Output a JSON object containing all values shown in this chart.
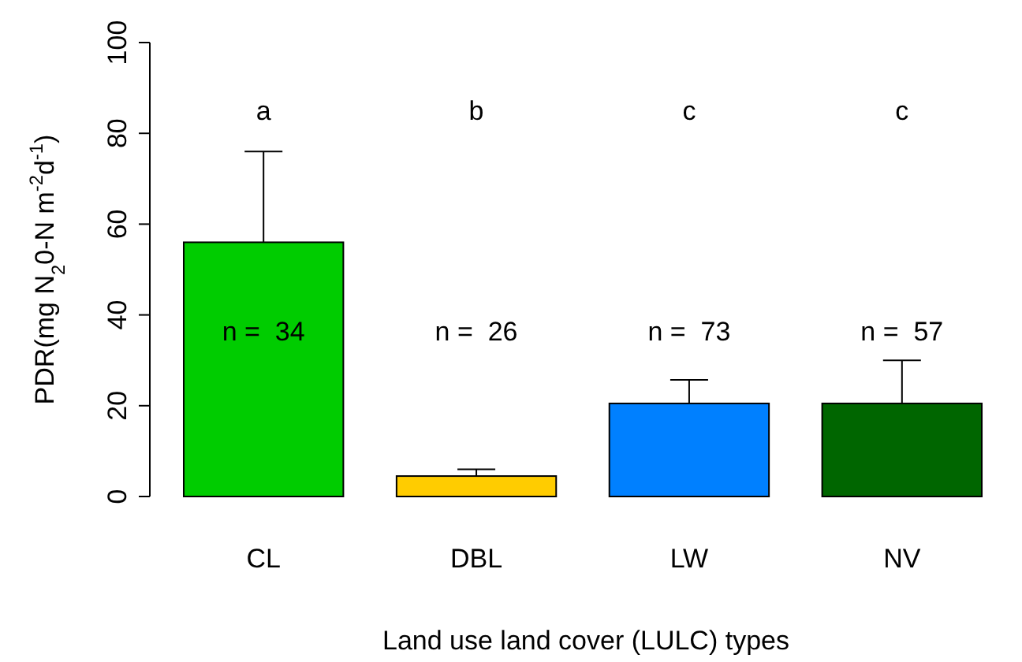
{
  "chart_data": {
    "type": "bar",
    "xlabel": "Land use land cover (LULC) types",
    "ylabel": "PDR(mg N$_{2}$0-N m$^{-2}$d$^{-1}$)",
    "categories": [
      "CL",
      "DBL",
      "LW",
      "NV"
    ],
    "values": [
      56,
      4.5,
      20.5,
      20.5
    ],
    "colors": [
      "#00cc00",
      "#ffcc00",
      "#0080ff",
      "#006600"
    ],
    "errors": [
      [
        56,
        76
      ],
      [
        4.5,
        6
      ],
      [
        20.5,
        25.7
      ],
      [
        20.5,
        30
      ]
    ],
    "ylim": [
      0,
      100
    ],
    "yticks": [
      0,
      20,
      40,
      60,
      80,
      100
    ],
    "annotations": [
      "a",
      "b",
      "c",
      "c",
      "n =  34",
      "n =  26",
      "n =  73",
      "n =  57"
    ]
  }
}
